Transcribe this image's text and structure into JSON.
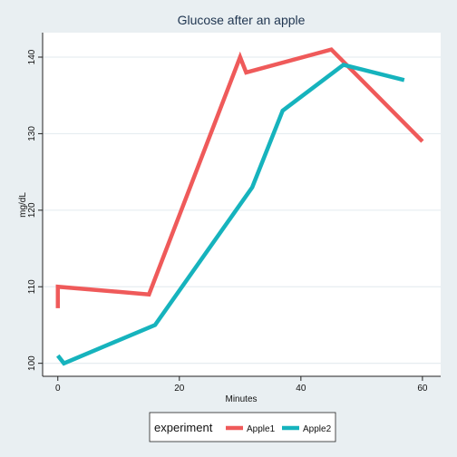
{
  "chart_data": {
    "type": "line",
    "title": "Glucose after an apple",
    "xlabel": "Minutes",
    "ylabel": "mg/dL",
    "xlim": [
      -2.5,
      63
    ],
    "ylim": [
      98.3,
      143.2
    ],
    "xticks": [
      0,
      20,
      40,
      60
    ],
    "yticks": [
      100,
      110,
      120,
      130,
      140
    ],
    "grid": "horizontal",
    "legend": {
      "title": "experiment",
      "position": "bottom"
    },
    "series": [
      {
        "name": "Apple1",
        "color": "#ef5a5a",
        "points": [
          [
            0,
            107.2
          ],
          [
            0,
            110
          ],
          [
            15,
            109
          ],
          [
            30,
            140
          ],
          [
            31,
            138
          ],
          [
            45,
            141
          ],
          [
            60,
            129
          ]
        ]
      },
      {
        "name": "Apple2",
        "color": "#16b3bd",
        "points": [
          [
            0,
            101
          ],
          [
            1,
            100
          ],
          [
            16,
            105
          ],
          [
            32,
            123
          ],
          [
            37,
            133
          ],
          [
            47,
            139
          ],
          [
            57,
            137
          ]
        ]
      }
    ]
  }
}
